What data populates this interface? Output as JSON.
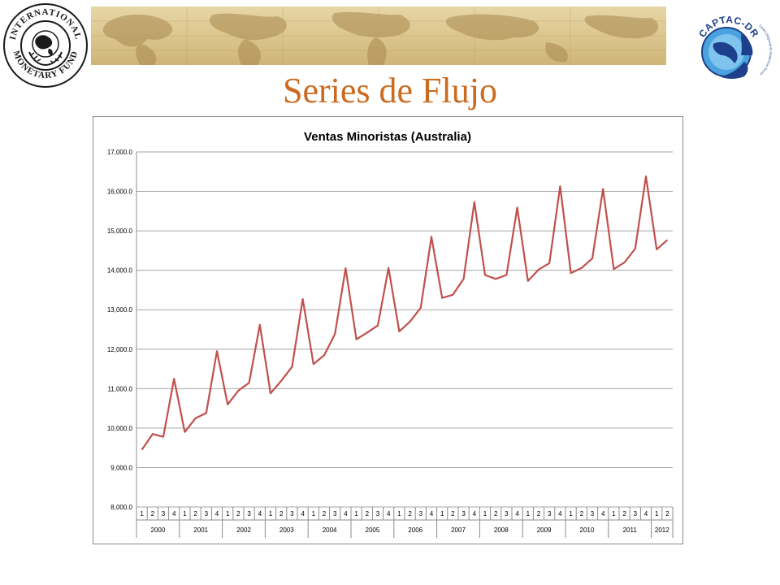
{
  "slide": {
    "title": "Series de Flujo"
  },
  "logos": {
    "imf_text": "INTERNATIONAL MONETARY FUND",
    "captac_text": "CAPTAC-DR",
    "captac_subtext": "Centro Regional de Asistencia Técnica de Centroamérica, Panamá y República Dominicana"
  },
  "colors": {
    "title": "#cc6a1f",
    "series_line": "#c0504d",
    "grid": "#a6a6a6"
  },
  "chart_data": {
    "type": "line",
    "title": "Ventas Minoristas (Australia)",
    "xlabel": "",
    "ylabel": "",
    "ylim": [
      8000,
      17000
    ],
    "yticks": [
      "8,000.0",
      "9,000.0",
      "10,000.0",
      "11,000.0",
      "12,000.0",
      "13,000.0",
      "14,000.0",
      "15,000.0",
      "16,000.0",
      "17,000.0"
    ],
    "grid": true,
    "legend": "none",
    "x_quarters": [
      "1",
      "2",
      "3",
      "4",
      "1",
      "2",
      "3",
      "4",
      "1",
      "2",
      "3",
      "4",
      "1",
      "2",
      "3",
      "4",
      "1",
      "2",
      "3",
      "4",
      "1",
      "2",
      "3",
      "4",
      "1",
      "2",
      "3",
      "4",
      "1",
      "2",
      "3",
      "4",
      "1",
      "2",
      "3",
      "4",
      "1",
      "2",
      "3",
      "4",
      "1",
      "2",
      "3",
      "4",
      "1",
      "2",
      "3",
      "4",
      "1",
      "2"
    ],
    "x_years": [
      {
        "label": "2000",
        "quarters": 4
      },
      {
        "label": "2001",
        "quarters": 4
      },
      {
        "label": "2002",
        "quarters": 4
      },
      {
        "label": "2003",
        "quarters": 4
      },
      {
        "label": "2004",
        "quarters": 4
      },
      {
        "label": "2005",
        "quarters": 4
      },
      {
        "label": "2006",
        "quarters": 4
      },
      {
        "label": "2007",
        "quarters": 4
      },
      {
        "label": "2008",
        "quarters": 4
      },
      {
        "label": "2009",
        "quarters": 4
      },
      {
        "label": "2010",
        "quarters": 4
      },
      {
        "label": "2011",
        "quarters": 4
      },
      {
        "label": "2012",
        "quarters": 2
      }
    ],
    "series": [
      {
        "values": [
          9450,
          9850,
          9780,
          11250,
          9900,
          10250,
          10380,
          11950,
          10600,
          10950,
          11150,
          12620,
          10880,
          11200,
          11550,
          13270,
          11620,
          11850,
          12380,
          14050,
          12250,
          12420,
          12600,
          14060,
          12450,
          12700,
          13050,
          14850,
          13300,
          13380,
          13780,
          15730,
          13880,
          13780,
          13880,
          15590,
          13730,
          14020,
          14180,
          16130,
          13930,
          14060,
          14300,
          16060,
          14030,
          14200,
          14550,
          16380,
          14530,
          14770
        ]
      }
    ]
  }
}
